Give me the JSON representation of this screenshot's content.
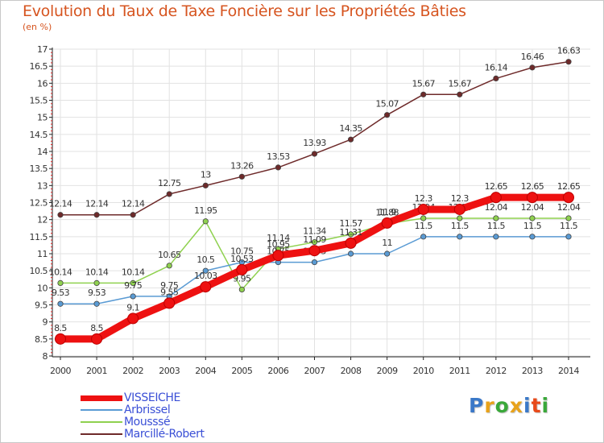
{
  "header": {
    "title": "Evolution du Taux de Taxe Foncière sur les Propriétés Bâties",
    "unit": "(en %)"
  },
  "brand": {
    "letters": [
      "P",
      "r",
      "o",
      "x",
      "i",
      "t",
      "i"
    ],
    "colors": [
      "#3a78c8",
      "#e8a21a",
      "#3aa83a",
      "#e8a21a",
      "#3a78c8",
      "#e84a1a",
      "#3aa83a"
    ]
  },
  "chart_data": {
    "type": "line",
    "title": "Evolution du Taux de Taxe Foncière sur les Propriétés Bâties",
    "ylabel": "(en %)",
    "xlabel": "",
    "ylim": [
      8,
      17
    ],
    "yticks": [
      "8",
      "8.5",
      "9",
      "9.5",
      "10",
      "10.5",
      "11",
      "11.5",
      "12",
      "12.5",
      "13",
      "13.5",
      "14",
      "14.5",
      "15",
      "15.5",
      "16",
      "16.5",
      "17"
    ],
    "categories": [
      "2000",
      "2001",
      "2002",
      "2003",
      "2004",
      "2005",
      "2006",
      "2007",
      "2008",
      "2009",
      "2010",
      "2011",
      "2012",
      "2013",
      "2014"
    ],
    "grid": true,
    "legend_position": "bottom-left",
    "series": [
      {
        "name": "Marcillé-Robert",
        "color": "#6e2a2a",
        "values": [
          12.14,
          12.14,
          12.14,
          12.75,
          13,
          13.26,
          13.53,
          13.93,
          14.35,
          15.07,
          15.67,
          15.67,
          16.14,
          16.46,
          16.63
        ],
        "labels": [
          "12.14",
          "12.14",
          "12.14",
          "12.75",
          "13",
          "13.26",
          "13.53",
          "13.93",
          "14.35",
          "15.07",
          "15.67",
          "15.67",
          "16.14",
          "16.46",
          "16.63"
        ]
      },
      {
        "name": "Mousssé",
        "color": "#8fd14f",
        "values": [
          10.14,
          10.14,
          10.14,
          10.65,
          11.95,
          9.95,
          11.14,
          11.34,
          11.57,
          11.88,
          12.04,
          12.04,
          12.04,
          12.04,
          12.04
        ],
        "labels": [
          "10.14",
          "10.14",
          "10.14",
          "10.65",
          "11.95",
          "9.95",
          "11.14",
          "11.34",
          "11.57",
          "11.88",
          "12.04",
          "12.04",
          "12.04",
          "12.04",
          "12.04"
        ]
      },
      {
        "name": "Arbrissel",
        "color": "#5a9bd4",
        "values": [
          9.53,
          9.53,
          9.75,
          9.75,
          10.5,
          10.75,
          10.75,
          10.75,
          11,
          11,
          11.5,
          11.5,
          11.5,
          11.5,
          11.5
        ],
        "labels": [
          "9.53",
          "9.53",
          "9.75",
          "9.75",
          "10.5",
          "10.75",
          "10.75",
          "10.75",
          "11",
          "11",
          "11.5",
          "11.5",
          "11.5",
          "11.5",
          "11.5"
        ]
      },
      {
        "name": "VISSEICHE",
        "color": "#ee1111",
        "values": [
          8.5,
          8.5,
          9.1,
          9.55,
          10.03,
          10.53,
          10.95,
          11.09,
          11.31,
          11.9,
          12.3,
          12.3,
          12.65,
          12.65,
          12.65
        ],
        "labels": [
          "8.5",
          "8.5",
          "9.1",
          "9.55",
          "10.03",
          "10.53",
          "10.95",
          "11.09",
          "11.31",
          "11.9",
          "12.3",
          "12.3",
          "12.65",
          "12.65",
          "12.65"
        ]
      }
    ],
    "legend": [
      "VISSEICHE",
      "Arbrissel",
      "Mousssé",
      "Marcillé-Robert"
    ]
  }
}
